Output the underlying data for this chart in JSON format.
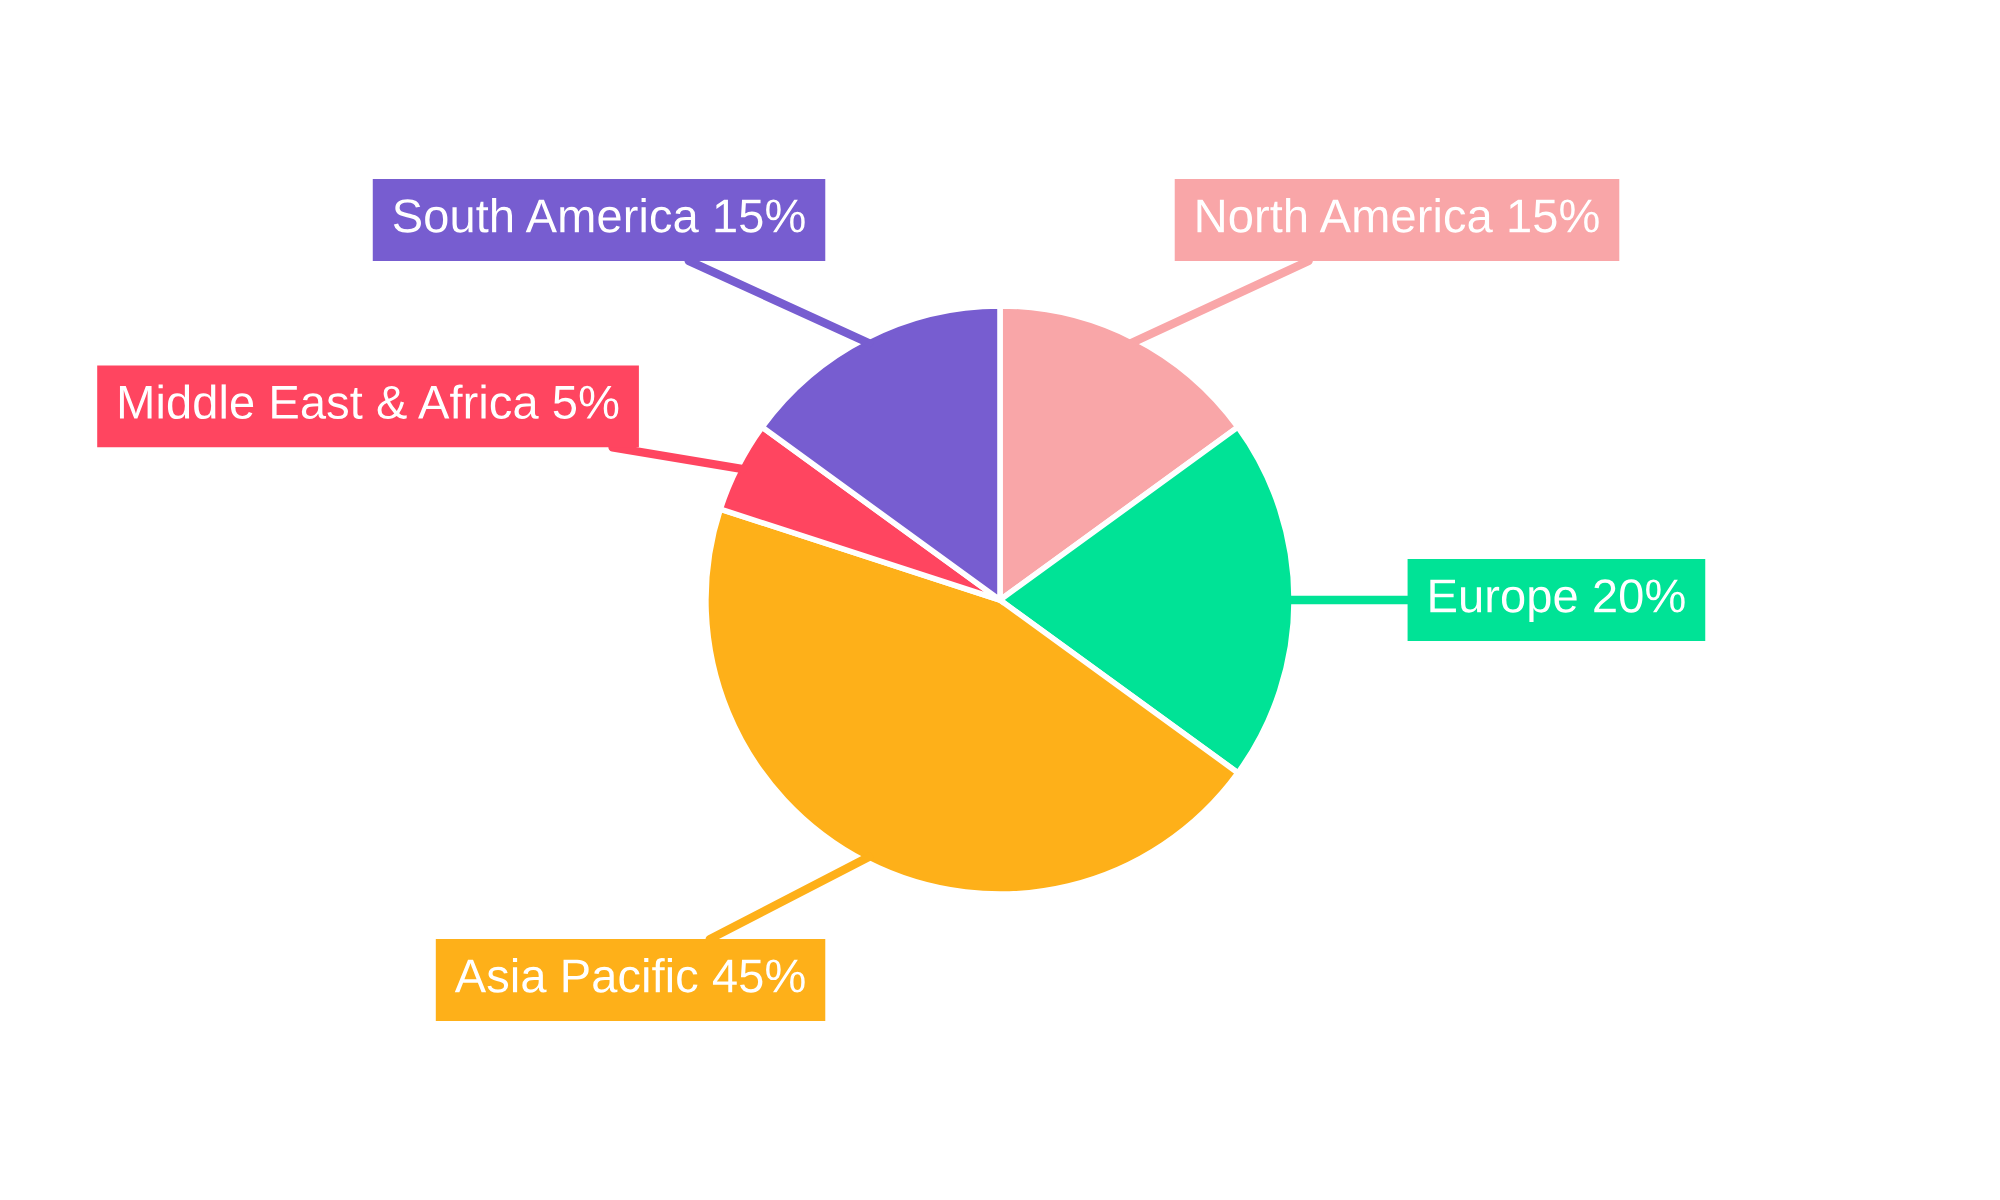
{
  "chart_data": {
    "type": "pie",
    "categories": [
      "North America",
      "Europe",
      "Asia Pacific",
      "Middle East & Africa",
      "South America"
    ],
    "values": [
      15,
      20,
      45,
      5,
      15
    ],
    "value_labels": [
      "15%",
      "20%",
      "45%",
      "5%",
      "15%"
    ],
    "colors": [
      "#f9a6a8",
      "#00e396",
      "#feb019",
      "#ff4560",
      "#775dd0"
    ],
    "legend": false
  }
}
